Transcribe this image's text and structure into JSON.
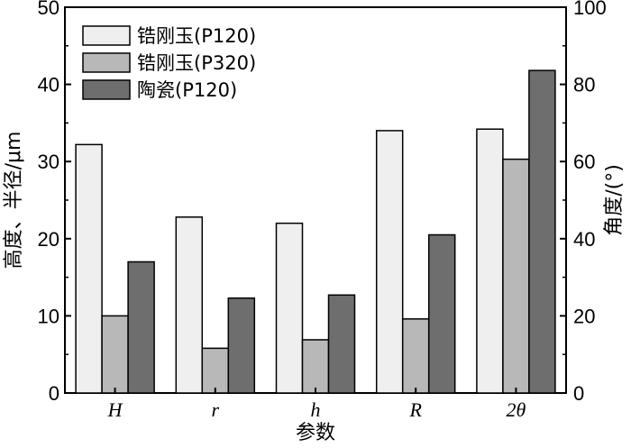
{
  "chart_data": {
    "type": "bar",
    "categories": [
      "H",
      "r",
      "h",
      "R",
      "2θ"
    ],
    "series": [
      {
        "name": "锆刚玉(P120)",
        "values": [
          32.2,
          22.8,
          22.0,
          34.0,
          34.2
        ],
        "color": "#efefef"
      },
      {
        "name": "锆刚玉(P320)",
        "values": [
          10.0,
          5.8,
          6.9,
          9.6,
          30.3
        ],
        "color": "#b8b8b8"
      },
      {
        "name": "陶瓷(P120)",
        "values": [
          17.0,
          12.3,
          12.7,
          20.5,
          41.8
        ],
        "color": "#6e6e6e"
      }
    ],
    "xlabel": "参数",
    "ylabel": "高度、半径/μm",
    "y2label": "角度/(°)",
    "ylim": [
      0,
      50
    ],
    "y2lim": [
      0,
      100
    ],
    "yticks": [
      0,
      10,
      20,
      30,
      40,
      50
    ],
    "y2ticks": [
      0,
      20,
      40,
      60,
      80,
      100
    ],
    "legend_position": "top-left",
    "grid": false
  }
}
